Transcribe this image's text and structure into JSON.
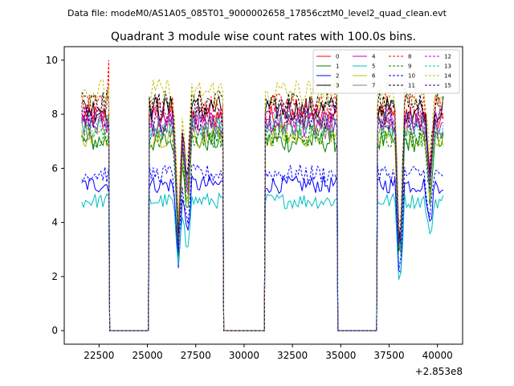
{
  "suptitle": "Data file: modeM0/AS1A05_085T01_9000002658_17856cztM0_level2_quad_clean.evt",
  "chart_data": {
    "type": "line",
    "title": "Quadrant 3 module wise count rates with 100.0s bins.",
    "xlabel": "",
    "ylabel": "",
    "x_offset_label": "+2.853e8",
    "xlim": [
      20700,
      41300
    ],
    "ylim": [
      -0.5,
      10.5
    ],
    "xticks": [
      22500,
      25000,
      27500,
      30000,
      32500,
      35000,
      37500,
      40000
    ],
    "yticks": [
      0,
      2,
      4,
      6,
      8,
      10
    ],
    "legend_location": "upper right",
    "gaps": [
      [
        23050,
        25050
      ],
      [
        28950,
        31050
      ],
      [
        34850,
        36850
      ]
    ],
    "segments": [
      [
        21600,
        23000
      ],
      [
        25100,
        28900
      ],
      [
        31100,
        34800
      ],
      [
        36900,
        40300
      ]
    ],
    "series": [
      {
        "name": "0",
        "color": "#ff0000",
        "dash": "solid",
        "level": 7.9
      },
      {
        "name": "1",
        "color": "#008000",
        "dash": "solid",
        "level": 7.0
      },
      {
        "name": "2",
        "color": "#0000ff",
        "dash": "solid",
        "level": 5.4
      },
      {
        "name": "3",
        "color": "#000000",
        "dash": "solid",
        "level": 8.2
      },
      {
        "name": "4",
        "color": "#bf00bf",
        "dash": "solid",
        "level": 7.6
      },
      {
        "name": "5",
        "color": "#00bfbf",
        "dash": "solid",
        "level": 4.8
      },
      {
        "name": "6",
        "color": "#bfbf00",
        "dash": "solid",
        "level": 7.2
      },
      {
        "name": "7",
        "color": "#808080",
        "dash": "solid",
        "level": 7.5
      },
      {
        "name": "8",
        "color": "#ff0000",
        "dash": "dashed",
        "level": 8.3
      },
      {
        "name": "9",
        "color": "#008000",
        "dash": "dashed",
        "level": 7.2
      },
      {
        "name": "10",
        "color": "#0000ff",
        "dash": "dashed",
        "level": 5.8
      },
      {
        "name": "11",
        "color": "#000000",
        "dash": "dashed",
        "level": 8.4
      },
      {
        "name": "12",
        "color": "#bf00bf",
        "dash": "dashed",
        "level": 7.9
      },
      {
        "name": "13",
        "color": "#00bfbf",
        "dash": "dashed",
        "level": 7.6
      },
      {
        "name": "14",
        "color": "#bfbf00",
        "dash": "dashed",
        "level": 8.8
      },
      {
        "name": "15",
        "color": "#4b0082",
        "dash": "dashed",
        "level": 7.8
      }
    ],
    "annotations": {
      "spike_at": 23000,
      "spike_value": 10.0,
      "dips": [
        [
          26600,
          0.45
        ],
        [
          27050,
          0.62
        ],
        [
          38050,
          0.3
        ],
        [
          39600,
          0.7
        ]
      ]
    }
  }
}
